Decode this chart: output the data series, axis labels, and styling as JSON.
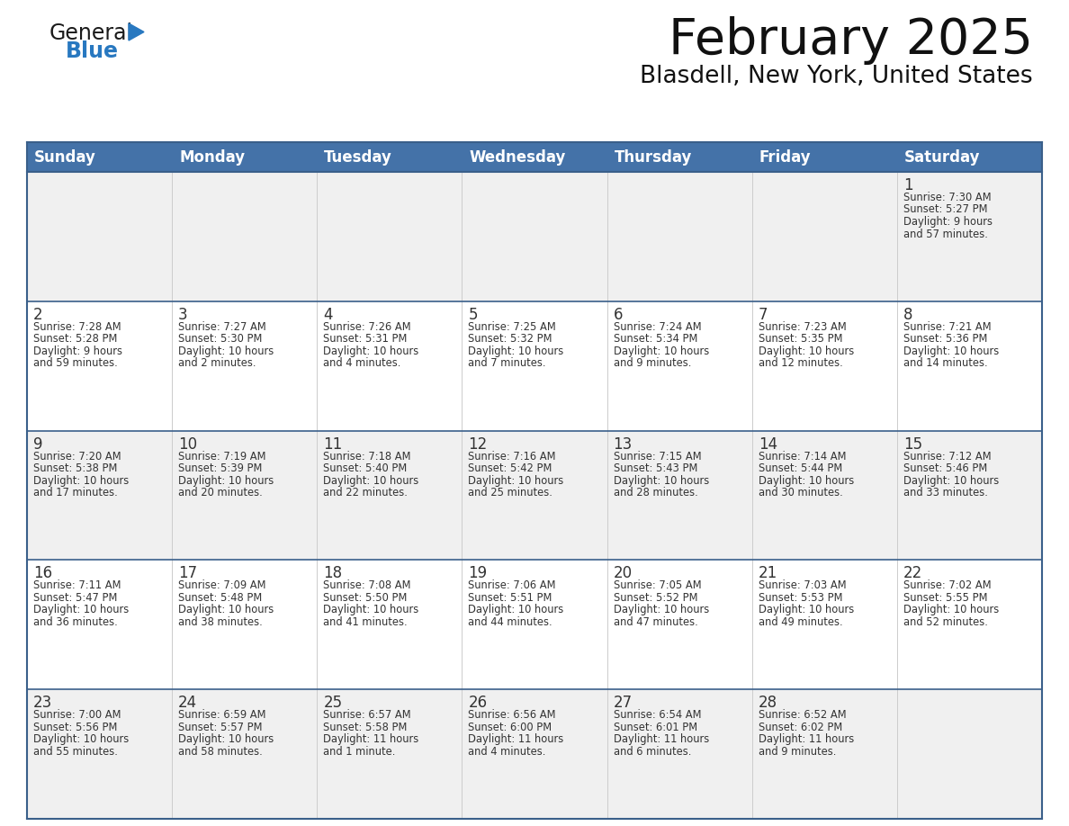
{
  "title": "February 2025",
  "subtitle": "Blasdell, New York, United States",
  "header_bg_color": "#4472a8",
  "header_text_color": "#ffffff",
  "cell_bg_row0": "#f0f0f0",
  "cell_bg_row1": "#ffffff",
  "cell_bg_row2": "#f0f0f0",
  "cell_bg_row3": "#ffffff",
  "cell_bg_row4": "#f0f0f0",
  "border_color": "#3a5f8a",
  "text_color": "#333333",
  "days_of_week": [
    "Sunday",
    "Monday",
    "Tuesday",
    "Wednesday",
    "Thursday",
    "Friday",
    "Saturday"
  ],
  "calendar_data": [
    [
      {
        "day": "",
        "sunrise": "",
        "sunset": "",
        "daylight": ""
      },
      {
        "day": "",
        "sunrise": "",
        "sunset": "",
        "daylight": ""
      },
      {
        "day": "",
        "sunrise": "",
        "sunset": "",
        "daylight": ""
      },
      {
        "day": "",
        "sunrise": "",
        "sunset": "",
        "daylight": ""
      },
      {
        "day": "",
        "sunrise": "",
        "sunset": "",
        "daylight": ""
      },
      {
        "day": "",
        "sunrise": "",
        "sunset": "",
        "daylight": ""
      },
      {
        "day": "1",
        "sunrise": "7:30 AM",
        "sunset": "5:27 PM",
        "daylight": "9 hours\nand 57 minutes."
      }
    ],
    [
      {
        "day": "2",
        "sunrise": "7:28 AM",
        "sunset": "5:28 PM",
        "daylight": "9 hours\nand 59 minutes."
      },
      {
        "day": "3",
        "sunrise": "7:27 AM",
        "sunset": "5:30 PM",
        "daylight": "10 hours\nand 2 minutes."
      },
      {
        "day": "4",
        "sunrise": "7:26 AM",
        "sunset": "5:31 PM",
        "daylight": "10 hours\nand 4 minutes."
      },
      {
        "day": "5",
        "sunrise": "7:25 AM",
        "sunset": "5:32 PM",
        "daylight": "10 hours\nand 7 minutes."
      },
      {
        "day": "6",
        "sunrise": "7:24 AM",
        "sunset": "5:34 PM",
        "daylight": "10 hours\nand 9 minutes."
      },
      {
        "day": "7",
        "sunrise": "7:23 AM",
        "sunset": "5:35 PM",
        "daylight": "10 hours\nand 12 minutes."
      },
      {
        "day": "8",
        "sunrise": "7:21 AM",
        "sunset": "5:36 PM",
        "daylight": "10 hours\nand 14 minutes."
      }
    ],
    [
      {
        "day": "9",
        "sunrise": "7:20 AM",
        "sunset": "5:38 PM",
        "daylight": "10 hours\nand 17 minutes."
      },
      {
        "day": "10",
        "sunrise": "7:19 AM",
        "sunset": "5:39 PM",
        "daylight": "10 hours\nand 20 minutes."
      },
      {
        "day": "11",
        "sunrise": "7:18 AM",
        "sunset": "5:40 PM",
        "daylight": "10 hours\nand 22 minutes."
      },
      {
        "day": "12",
        "sunrise": "7:16 AM",
        "sunset": "5:42 PM",
        "daylight": "10 hours\nand 25 minutes."
      },
      {
        "day": "13",
        "sunrise": "7:15 AM",
        "sunset": "5:43 PM",
        "daylight": "10 hours\nand 28 minutes."
      },
      {
        "day": "14",
        "sunrise": "7:14 AM",
        "sunset": "5:44 PM",
        "daylight": "10 hours\nand 30 minutes."
      },
      {
        "day": "15",
        "sunrise": "7:12 AM",
        "sunset": "5:46 PM",
        "daylight": "10 hours\nand 33 minutes."
      }
    ],
    [
      {
        "day": "16",
        "sunrise": "7:11 AM",
        "sunset": "5:47 PM",
        "daylight": "10 hours\nand 36 minutes."
      },
      {
        "day": "17",
        "sunrise": "7:09 AM",
        "sunset": "5:48 PM",
        "daylight": "10 hours\nand 38 minutes."
      },
      {
        "day": "18",
        "sunrise": "7:08 AM",
        "sunset": "5:50 PM",
        "daylight": "10 hours\nand 41 minutes."
      },
      {
        "day": "19",
        "sunrise": "7:06 AM",
        "sunset": "5:51 PM",
        "daylight": "10 hours\nand 44 minutes."
      },
      {
        "day": "20",
        "sunrise": "7:05 AM",
        "sunset": "5:52 PM",
        "daylight": "10 hours\nand 47 minutes."
      },
      {
        "day": "21",
        "sunrise": "7:03 AM",
        "sunset": "5:53 PM",
        "daylight": "10 hours\nand 49 minutes."
      },
      {
        "day": "22",
        "sunrise": "7:02 AM",
        "sunset": "5:55 PM",
        "daylight": "10 hours\nand 52 minutes."
      }
    ],
    [
      {
        "day": "23",
        "sunrise": "7:00 AM",
        "sunset": "5:56 PM",
        "daylight": "10 hours\nand 55 minutes."
      },
      {
        "day": "24",
        "sunrise": "6:59 AM",
        "sunset": "5:57 PM",
        "daylight": "10 hours\nand 58 minutes."
      },
      {
        "day": "25",
        "sunrise": "6:57 AM",
        "sunset": "5:58 PM",
        "daylight": "11 hours\nand 1 minute."
      },
      {
        "day": "26",
        "sunrise": "6:56 AM",
        "sunset": "6:00 PM",
        "daylight": "11 hours\nand 4 minutes."
      },
      {
        "day": "27",
        "sunrise": "6:54 AM",
        "sunset": "6:01 PM",
        "daylight": "11 hours\nand 6 minutes."
      },
      {
        "day": "28",
        "sunrise": "6:52 AM",
        "sunset": "6:02 PM",
        "daylight": "11 hours\nand 9 minutes."
      },
      {
        "day": "",
        "sunrise": "",
        "sunset": "",
        "daylight": ""
      }
    ]
  ],
  "logo_color_general": "#1a1a1a",
  "logo_color_blue": "#2878c0",
  "logo_triangle_color": "#2878c0",
  "fig_width": 11.88,
  "fig_height": 9.18,
  "dpi": 100
}
